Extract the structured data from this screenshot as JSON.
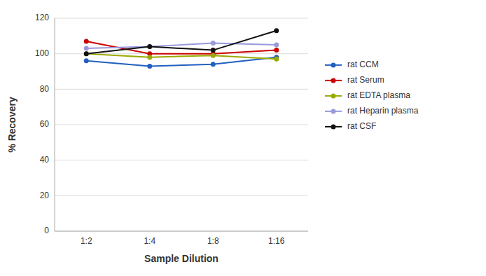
{
  "chart_data": {
    "type": "line",
    "categories": [
      "1:2",
      "1:4",
      "1:8",
      "1:16"
    ],
    "series": [
      {
        "name": "rat CCM",
        "color": "#2060c0",
        "values": [
          96,
          93,
          94,
          98
        ]
      },
      {
        "name": "rat Serum",
        "color": "#cc0000",
        "values": [
          107,
          100,
          100,
          102
        ]
      },
      {
        "name": "rat EDTA plasma",
        "color": "#99aa00",
        "values": [
          100,
          98,
          99,
          97
        ]
      },
      {
        "name": "rat Heparin plasma",
        "color": "#9999dd",
        "values": [
          103,
          104,
          106,
          105
        ]
      },
      {
        "name": "rat CSF",
        "color": "#111111",
        "values": [
          100,
          104,
          102,
          113
        ]
      }
    ],
    "xlabel": "Sample Dilution",
    "ylabel": "% Recovery",
    "ylim": [
      0,
      120
    ],
    "yticks": [
      0,
      20,
      40,
      60,
      80,
      100,
      120
    ],
    "grid": true,
    "legend": "right",
    "marker": "circle"
  }
}
